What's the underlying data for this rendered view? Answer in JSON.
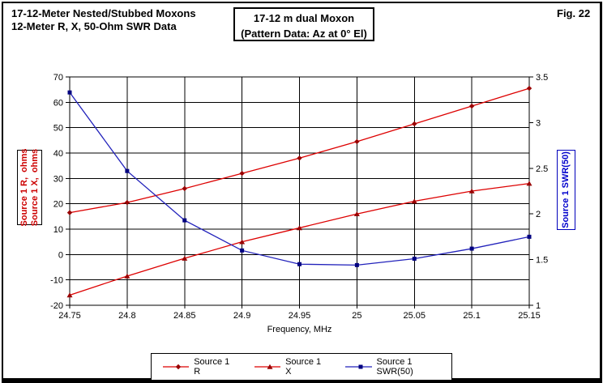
{
  "header": {
    "title_line1": "17-12-Meter Nested/Stubbed Moxons",
    "title_line2": "12-Meter R, X, 50-Ohm SWR Data",
    "box_line1": "17-12 m dual Moxon",
    "box_line2": "(Pattern Data: Az at 0° El)",
    "figure_number": "Fig. 22"
  },
  "colors": {
    "r_x_line": "#dd0000",
    "r_x_marker": "#990000",
    "swr_line": "#2222bb",
    "swr_marker": "#000080",
    "grid": "#000000",
    "left_axis_text": "#cc0000",
    "right_axis_text": "#0000cc"
  },
  "chart_data": {
    "type": "line",
    "title": "12-Meter R, X, 50-Ohm SWR Data",
    "xlabel": "Frequency, MHz",
    "x_range": [
      24.75,
      25.15
    ],
    "grid": true,
    "legend_position": "bottom",
    "x": [
      24.75,
      24.8,
      24.85,
      24.9,
      24.95,
      25.0,
      25.05,
      25.1,
      25.15
    ],
    "x_tick_labels": [
      "24.75",
      "24.8",
      "24.85",
      "24.9",
      "24.95",
      "25",
      "25.05",
      "25.1",
      "25.15"
    ],
    "left_axis": {
      "title_line1": "Source 1 R,  ohms",
      "title_line2": "Source 1 X,  ohms",
      "range": [
        -20,
        70
      ],
      "tick_values": [
        -20,
        -10,
        0,
        10,
        20,
        30,
        40,
        50,
        60,
        70
      ],
      "tick_labels": [
        "-20",
        "-10",
        "0",
        "10",
        "20",
        "30",
        "40",
        "50",
        "60",
        "70"
      ]
    },
    "right_axis": {
      "title": "Source 1 SWR(50)",
      "range": [
        1,
        3.5
      ],
      "tick_values": [
        1,
        1.5,
        2,
        2.5,
        3,
        3.5
      ],
      "tick_labels": [
        "1",
        "1.5",
        "2",
        "2.5",
        "3",
        "3.5"
      ]
    },
    "series": [
      {
        "name": "Source 1 R",
        "axis": "left",
        "marker": "diamond",
        "line_color": "#dd0000",
        "marker_color": "#990000",
        "values": [
          16.5,
          20.5,
          26,
          32,
          38,
          44.5,
          51.5,
          58.5,
          65.5
        ]
      },
      {
        "name": "Source 1 X",
        "axis": "left",
        "marker": "triangle",
        "line_color": "#dd0000",
        "marker_color": "#990000",
        "values": [
          -16,
          -8.5,
          -1.5,
          5,
          10.5,
          16,
          21,
          25,
          28
        ]
      },
      {
        "name": "Source 1 SWR(50)",
        "axis": "right",
        "marker": "square",
        "line_color": "#2222bb",
        "marker_color": "#000080",
        "values": [
          3.33,
          2.47,
          1.93,
          1.6,
          1.45,
          1.44,
          1.51,
          1.62,
          1.75
        ]
      }
    ]
  }
}
